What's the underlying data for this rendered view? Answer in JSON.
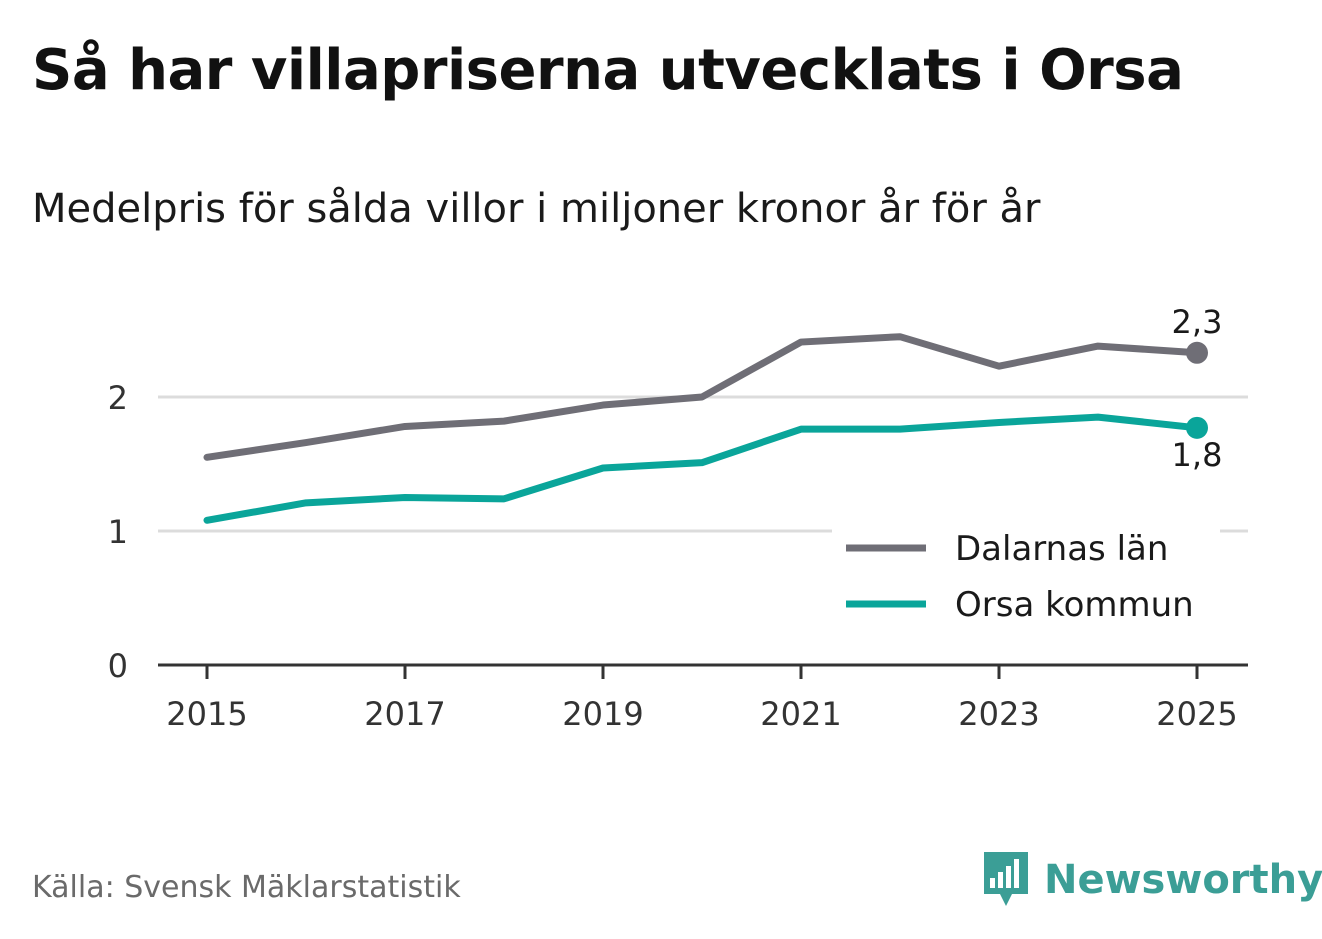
{
  "title": "Så har villapriserna utvecklats i Orsa",
  "subtitle": "Medelpris för sålda villor i miljoner kronor år för år",
  "source": "Källa: Svensk Mäklarstatistik",
  "brand": {
    "name": "Newsworthy",
    "icon": "newsworthy-logo-icon",
    "color": "#3b9e96"
  },
  "chart_data": {
    "type": "line",
    "x": [
      2015,
      2016,
      2017,
      2018,
      2019,
      2020,
      2021,
      2022,
      2023,
      2024,
      2025
    ],
    "xticks": [
      "2015",
      "2017",
      "2019",
      "2021",
      "2023",
      "2025"
    ],
    "yticks": [
      "0",
      "1",
      "2"
    ],
    "ylim": [
      0,
      2.6
    ],
    "grid": true,
    "legend_position": "bottom-right",
    "series": [
      {
        "name": "Dalarnas län",
        "color": "#6f6e76",
        "values": [
          1.55,
          1.66,
          1.78,
          1.82,
          1.94,
          2.0,
          2.41,
          2.45,
          2.23,
          2.38,
          2.33
        ],
        "end_label": "2,3"
      },
      {
        "name": "Orsa kommun",
        "color": "#0aa59a",
        "values": [
          1.08,
          1.21,
          1.25,
          1.24,
          1.47,
          1.51,
          1.76,
          1.76,
          1.81,
          1.85,
          1.77
        ],
        "end_label": "1,8"
      }
    ]
  }
}
